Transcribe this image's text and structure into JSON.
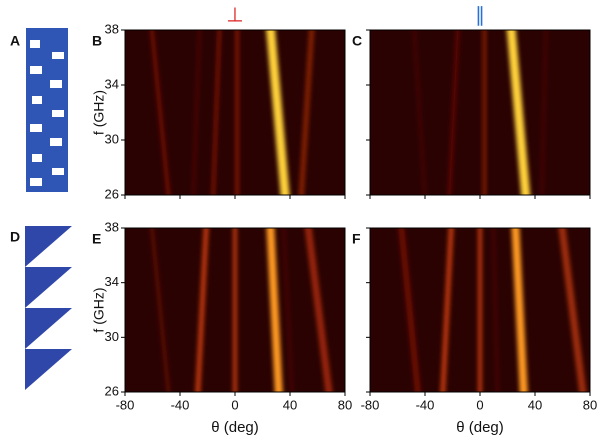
{
  "figure": {
    "schematic_labels": [
      "A",
      "D"
    ],
    "column_titles": [
      "⊥",
      "∥"
    ],
    "panels": [
      {
        "label": "B"
      },
      {
        "label": "C"
      },
      {
        "label": "E"
      },
      {
        "label": "F"
      }
    ],
    "axes": {
      "xlim": [
        -80,
        80
      ],
      "xticks": [
        -80,
        -40,
        0,
        40,
        80
      ],
      "xlabel": "θ (deg)",
      "ylim": [
        26,
        38
      ],
      "yticks": [
        26,
        30,
        34,
        38
      ],
      "ylabel": "f (GHz)"
    }
  }
}
